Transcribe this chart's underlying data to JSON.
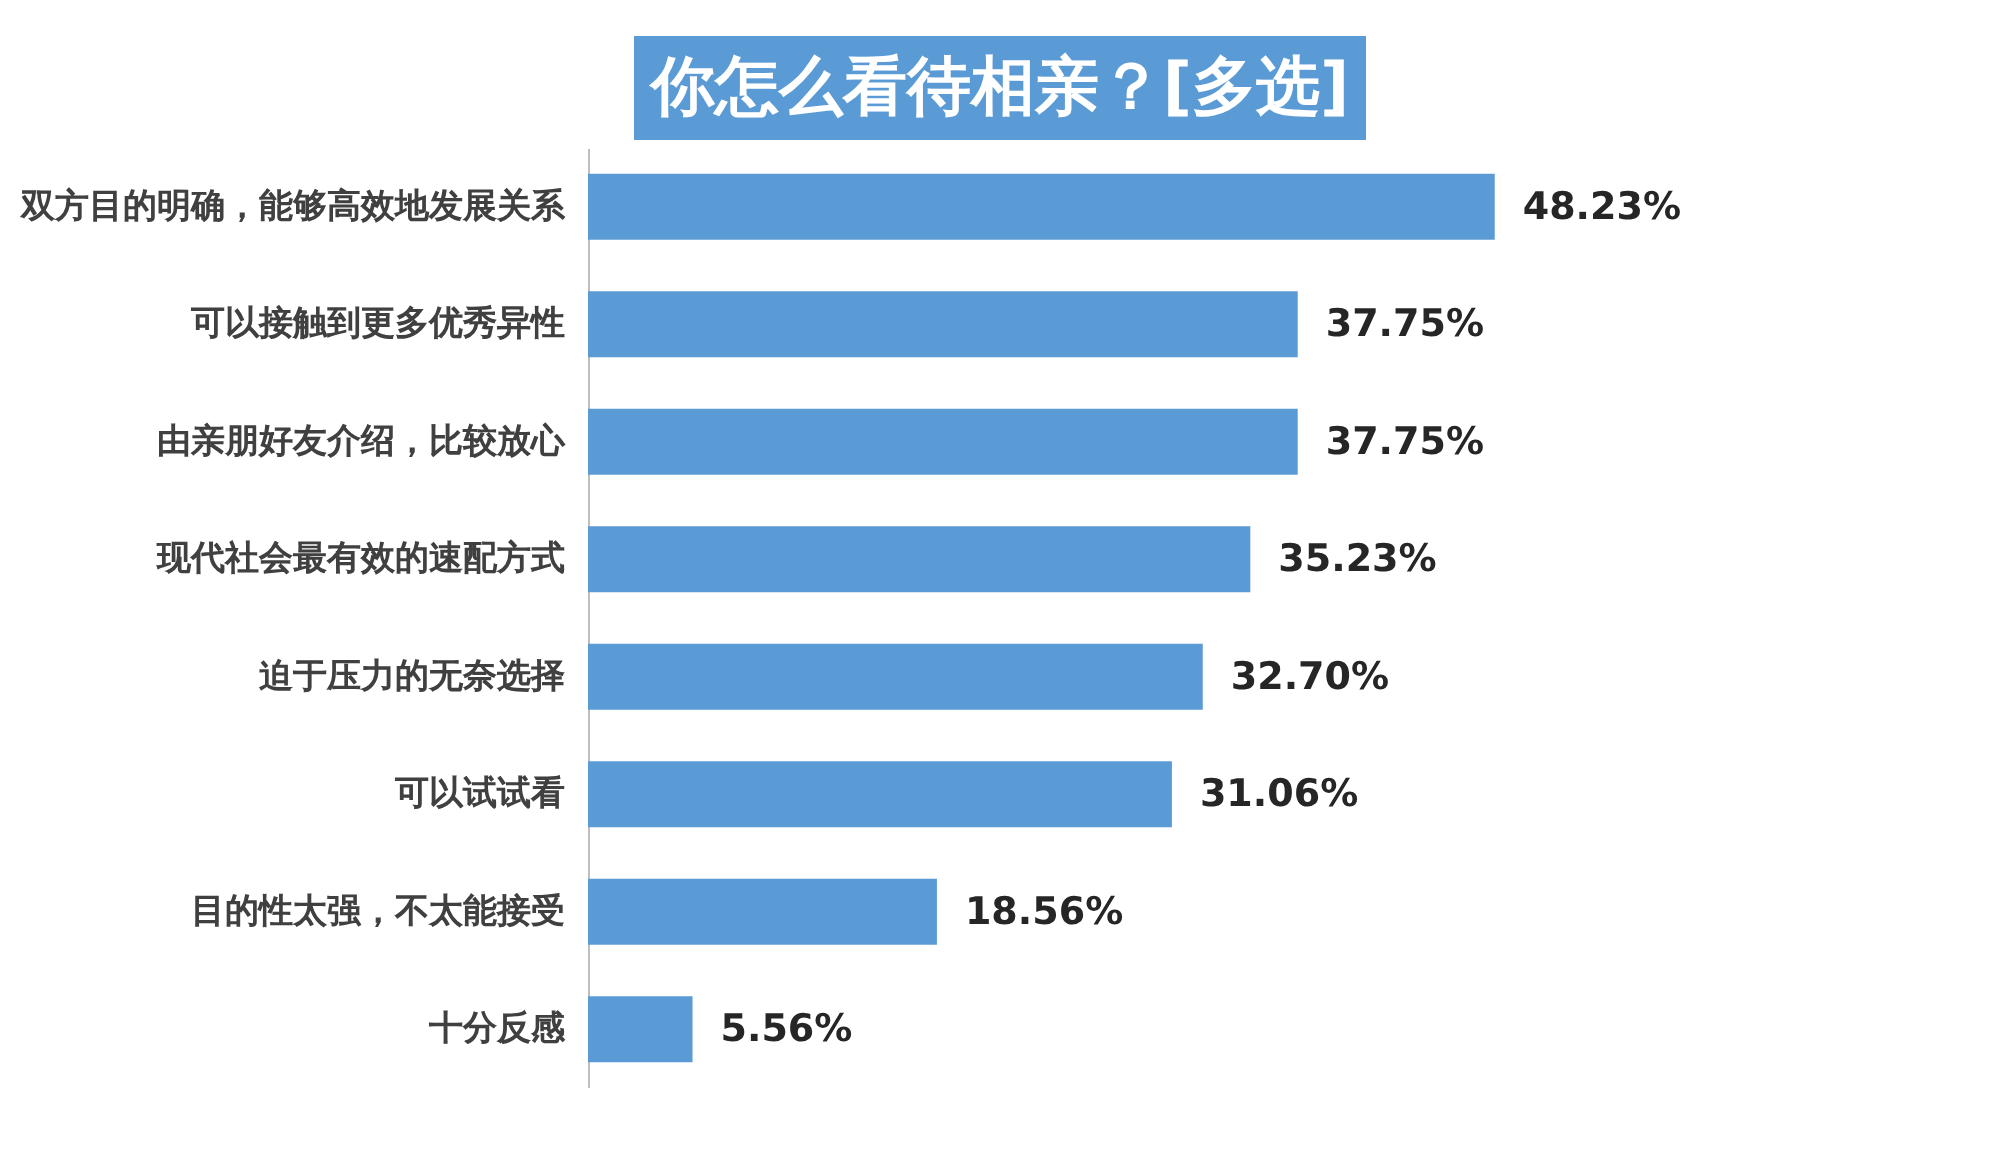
{
  "chart_data": {
    "type": "bar",
    "orientation": "horizontal",
    "title": "你怎么看待相亲？[多选]",
    "categories": [
      "双方目的明确，能够高效地发展关系",
      "可以接触到更多优秀异性",
      "由亲朋好友介绍，比较放心",
      "现代社会最有效的速配方式",
      "迫于压力的无奈选择",
      "可以试试看",
      "目的性太强，不太能接受",
      "十分反感"
    ],
    "values": [
      48.23,
      37.75,
      37.75,
      35.23,
      32.7,
      31.06,
      18.56,
      5.56
    ],
    "value_labels": [
      "48.23%",
      "37.75%",
      "37.75%",
      "35.23%",
      "32.70%",
      "31.06%",
      "18.56%",
      "5.56%"
    ],
    "color": "#5b9bd5"
  }
}
